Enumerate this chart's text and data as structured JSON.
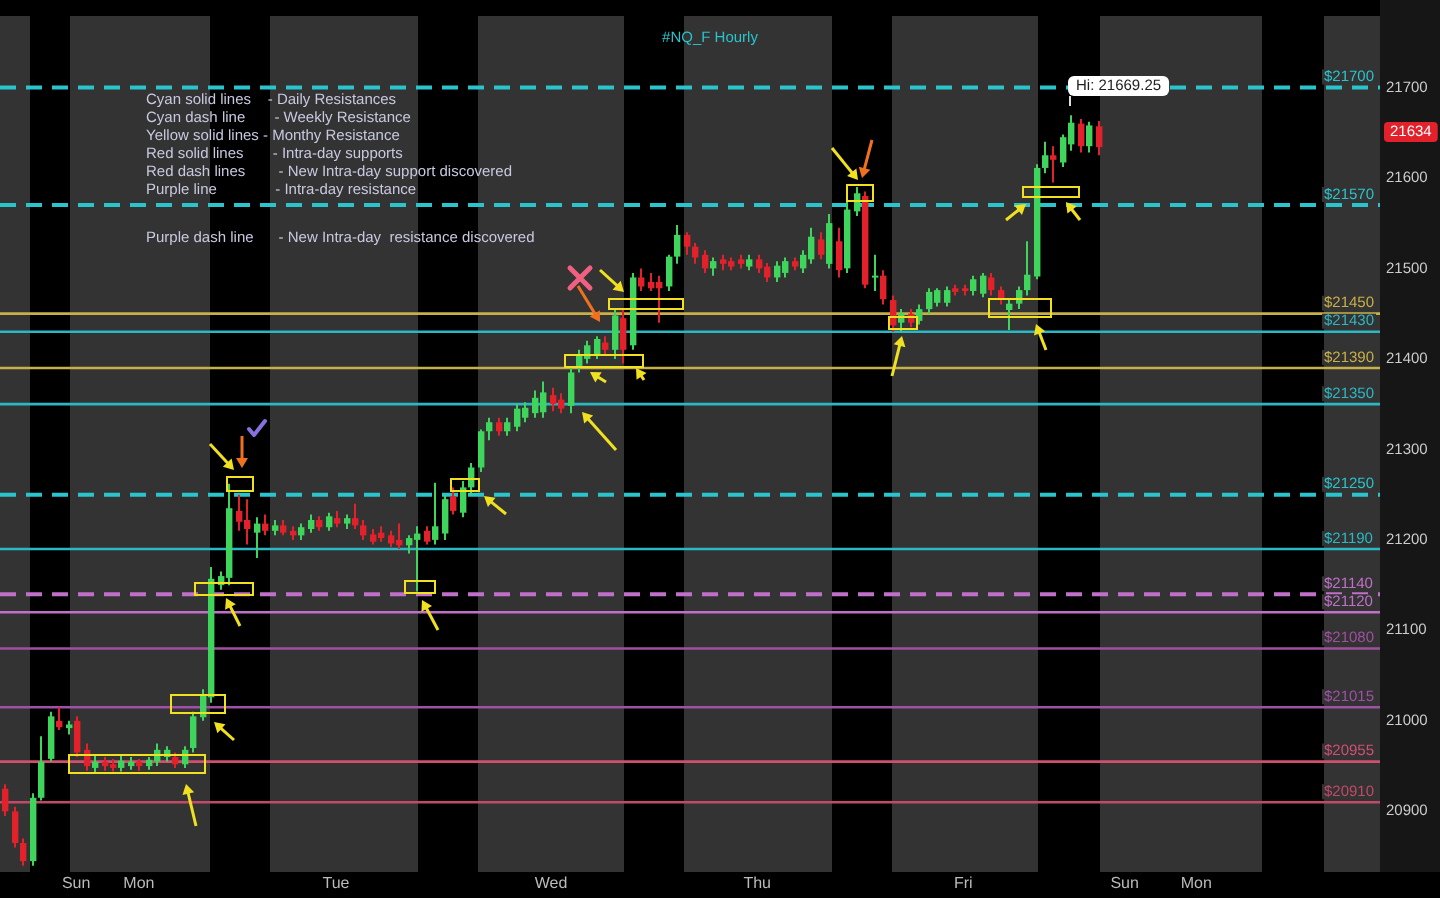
{
  "chart_data": {
    "type": "candlestick",
    "title": "#NQ_F Hourly",
    "categories": [
      null,
      null,
      null,
      null,
      null,
      null,
      null,
      null,
      "Sun",
      null,
      null,
      null,
      null,
      null,
      null,
      "Mon",
      null,
      null,
      null,
      null,
      null,
      null,
      null,
      null,
      null,
      null,
      null,
      null,
      null,
      null,
      null,
      null,
      null,
      null,
      null,
      null,
      null,
      "Tue",
      null,
      null,
      null,
      null,
      null,
      null,
      null,
      null,
      null,
      null,
      null,
      null,
      null,
      null,
      null,
      null,
      null,
      null,
      null,
      null,
      null,
      null,
      null,
      "Wed",
      null,
      null,
      null,
      null,
      null,
      null,
      null,
      null,
      null,
      null,
      null,
      null,
      null,
      null,
      null,
      null,
      null,
      null,
      null,
      null,
      null,
      null,
      "Thu",
      null,
      null,
      null,
      null,
      null,
      null,
      null,
      null,
      null,
      null,
      null,
      null,
      null,
      null,
      null,
      null,
      null,
      null,
      null,
      null,
      null,
      null,
      "Fri",
      null,
      null,
      null,
      null,
      null,
      null,
      null,
      null,
      null,
      null,
      null,
      null,
      null,
      null,
      null,
      null,
      null,
      "Sun",
      null,
      null,
      null,
      null,
      null,
      null,
      null,
      "Mon",
      null,
      null,
      null,
      null,
      null,
      null,
      null,
      null,
      null,
      null,
      null,
      null,
      null,
      null,
      null,
      null,
      null,
      null,
      null,
      null
    ],
    "ohlc": [
      [
        20925,
        20930,
        20895,
        20900
      ],
      [
        20900,
        20905,
        20860,
        20865
      ],
      [
        20865,
        20870,
        20840,
        20845
      ],
      [
        20845,
        20920,
        20840,
        20915
      ],
      [
        20915,
        20983,
        20912,
        20955
      ],
      [
        20958,
        21010,
        20955,
        21005
      ],
      [
        21000,
        21015,
        20990,
        20993
      ],
      [
        20992,
        21000,
        20985,
        20996
      ],
      [
        21000,
        21005,
        20960,
        20965
      ],
      [
        20968,
        20975,
        20945,
        20950
      ],
      [
        20948,
        20962,
        20942,
        20955
      ],
      [
        20955,
        20960,
        20945,
        20950
      ],
      [
        20952,
        20958,
        20944,
        20948
      ],
      [
        20948,
        20962,
        20944,
        20956
      ],
      [
        20950,
        20960,
        20946,
        20955
      ],
      [
        20955,
        20958,
        20945,
        20950
      ],
      [
        20950,
        20960,
        20946,
        20957
      ],
      [
        20955,
        20975,
        20950,
        20968
      ],
      [
        20960,
        20972,
        20955,
        20968
      ],
      [
        20960,
        20965,
        20948,
        20952
      ],
      [
        20952,
        20972,
        20948,
        20968
      ],
      [
        20970,
        21010,
        20965,
        21005
      ],
      [
        21004,
        21035,
        21000,
        21028
      ],
      [
        21026,
        21170,
        21020,
        21157
      ],
      [
        21150,
        21165,
        21145,
        21160
      ],
      [
        21158,
        21262,
        21150,
        21235
      ],
      [
        21232,
        21250,
        21210,
        21220
      ],
      [
        21222,
        21245,
        21195,
        21212
      ],
      [
        21208,
        21225,
        21180,
        21218
      ],
      [
        21218,
        21228,
        21205,
        21210
      ],
      [
        21210,
        21222,
        21205,
        21216
      ],
      [
        21216,
        21222,
        21205,
        21208
      ],
      [
        21210,
        21215,
        21200,
        21205
      ],
      [
        21205,
        21218,
        21200,
        21214
      ],
      [
        21212,
        21228,
        21208,
        21222
      ],
      [
        21222,
        21226,
        21210,
        21214
      ],
      [
        21214,
        21230,
        21210,
        21226
      ],
      [
        21224,
        21232,
        21214,
        21218
      ],
      [
        21218,
        21228,
        21212,
        21224
      ],
      [
        21224,
        21240,
        21212,
        21216
      ],
      [
        21216,
        21222,
        21200,
        21205
      ],
      [
        21206,
        21212,
        21195,
        21198
      ],
      [
        21208,
        21215,
        21198,
        21202
      ],
      [
        21205,
        21210,
        21192,
        21196
      ],
      [
        21200,
        21218,
        21190,
        21194
      ],
      [
        21194,
        21205,
        21185,
        21202
      ],
      [
        21200,
        21215,
        21143,
        21207
      ],
      [
        21210,
        21215,
        21195,
        21198
      ],
      [
        21200,
        21263,
        21195,
        21215
      ],
      [
        21207,
        21250,
        21200,
        21245
      ],
      [
        21248,
        21258,
        21228,
        21232
      ],
      [
        21230,
        21265,
        21225,
        21258
      ],
      [
        21258,
        21285,
        21250,
        21280
      ],
      [
        21280,
        21322,
        21275,
        21320
      ],
      [
        21320,
        21335,
        21310,
        21330
      ],
      [
        21330,
        21335,
        21315,
        21320
      ],
      [
        21320,
        21335,
        21315,
        21330
      ],
      [
        21325,
        21350,
        21320,
        21345
      ],
      [
        21335,
        21352,
        21330,
        21346
      ],
      [
        21340,
        21365,
        21335,
        21357
      ],
      [
        21341,
        21375,
        21335,
        21363
      ],
      [
        21360,
        21368,
        21342,
        21350
      ],
      [
        21355,
        21362,
        21340,
        21345
      ],
      [
        21348,
        21390,
        21340,
        21385
      ],
      [
        21390,
        21410,
        21385,
        21405
      ],
      [
        21400,
        21420,
        21395,
        21415
      ],
      [
        21405,
        21425,
        21400,
        21422
      ],
      [
        21418,
        21425,
        21405,
        21410
      ],
      [
        21410,
        21455,
        21400,
        21448
      ],
      [
        21445,
        21455,
        21395,
        21410
      ],
      [
        21415,
        21495,
        21410,
        21490
      ],
      [
        21490,
        21500,
        21475,
        21480
      ],
      [
        21485,
        21495,
        21475,
        21478
      ],
      [
        21485,
        21492,
        21440,
        21478
      ],
      [
        21480,
        21515,
        21475,
        21513
      ],
      [
        21513,
        21548,
        21505,
        21537
      ],
      [
        21537,
        21540,
        21515,
        21524
      ],
      [
        21524,
        21528,
        21505,
        21512
      ],
      [
        21515,
        21520,
        21495,
        21500
      ],
      [
        21500,
        21512,
        21492,
        21508
      ],
      [
        21510,
        21515,
        21498,
        21505
      ],
      [
        21508,
        21512,
        21498,
        21502
      ],
      [
        21510,
        21515,
        21500,
        21505
      ],
      [
        21502,
        21515,
        21498,
        21510
      ],
      [
        21510,
        21515,
        21495,
        21500
      ],
      [
        21502,
        21506,
        21485,
        21490
      ],
      [
        21490,
        21508,
        21485,
        21503
      ],
      [
        21495,
        21512,
        21490,
        21508
      ],
      [
        21508,
        21512,
        21498,
        21502
      ],
      [
        21500,
        21520,
        21495,
        21515
      ],
      [
        21510,
        21545,
        21505,
        21535
      ],
      [
        21532,
        21540,
        21510,
        21515
      ],
      [
        21505,
        21560,
        21500,
        21550
      ],
      [
        21530,
        21545,
        21490,
        21498
      ],
      [
        21500,
        21575,
        21495,
        21565
      ],
      [
        21563,
        21590,
        21558,
        21583
      ],
      [
        21580,
        21585,
        21478,
        21482
      ],
      [
        21490,
        21515,
        21475,
        21492
      ],
      [
        21492,
        21498,
        21460,
        21466
      ],
      [
        21465,
        21470,
        21430,
        21437
      ],
      [
        21440,
        21455,
        21430,
        21450
      ],
      [
        21450,
        21455,
        21435,
        21440
      ],
      [
        21442,
        21460,
        21438,
        21455
      ],
      [
        21455,
        21478,
        21450,
        21474
      ],
      [
        21462,
        21478,
        21458,
        21476
      ],
      [
        21462,
        21480,
        21458,
        21476
      ],
      [
        21478,
        21482,
        21470,
        21474
      ],
      [
        21478,
        21482,
        21470,
        21475
      ],
      [
        21475,
        21492,
        21470,
        21488
      ],
      [
        21472,
        21495,
        21468,
        21492
      ],
      [
        21490,
        21495,
        21470,
        21476
      ],
      [
        21476,
        21480,
        21460,
        21465
      ],
      [
        21454,
        21466,
        21432,
        21461
      ],
      [
        21461,
        21480,
        21455,
        21476
      ],
      [
        21476,
        21530,
        21470,
        21493
      ],
      [
        21491,
        21615,
        21488,
        21611
      ],
      [
        21611,
        21640,
        21605,
        21625
      ],
      [
        21625,
        21635,
        21595,
        21620
      ],
      [
        21617,
        21648,
        21612,
        21645
      ],
      [
        21637,
        21669.25,
        21630,
        21661
      ],
      [
        21660,
        21665,
        21628,
        21635
      ],
      [
        21635,
        21662,
        21628,
        21658
      ],
      [
        21657,
        21663,
        21625,
        21634
      ],
      null,
      null,
      null,
      null,
      null,
      null,
      null,
      null,
      null,
      null,
      null,
      null,
      null,
      null,
      null,
      null,
      null,
      null,
      null,
      null,
      null,
      null,
      null,
      null,
      null,
      null,
      null,
      null,
      null,
      null,
      null
    ],
    "ylim": [
      20833,
      21780
    ],
    "yticks": [
      20900,
      21000,
      21100,
      21200,
      21300,
      21400,
      21500,
      21600,
      21700
    ],
    "ref_lines": [
      {
        "axis": "y",
        "value": 21700,
        "label": "$21700",
        "color": "#2ac4cc",
        "line_style": "dashed"
      },
      {
        "axis": "y",
        "value": 21570,
        "label": "$21570",
        "color": "#2ac4cc",
        "line_style": "dashed"
      },
      {
        "axis": "y",
        "value": 21450,
        "label": "$21450",
        "color": "#c8b048",
        "line_style": "solid"
      },
      {
        "axis": "y",
        "value": 21430,
        "label": "$21430",
        "color": "#2ab8c4",
        "line_style": "solid"
      },
      {
        "axis": "y",
        "value": 21390,
        "label": "$21390",
        "color": "#c8b048",
        "line_style": "solid"
      },
      {
        "axis": "y",
        "value": 21350,
        "label": "$21350",
        "color": "#2ab8c4",
        "line_style": "solid"
      },
      {
        "axis": "y",
        "value": 21250,
        "label": "$21250",
        "color": "#2ac4cc",
        "line_style": "dashed"
      },
      {
        "axis": "y",
        "value": 21190,
        "label": "$21190",
        "color": "#2ab8c4",
        "line_style": "solid"
      },
      {
        "axis": "y",
        "value": 21140,
        "label": "$21140",
        "color": "#c070c8",
        "line_style": "dashed"
      },
      {
        "axis": "y",
        "value": 21120,
        "label": "$21120",
        "color": "#c070c8",
        "line_style": "solid"
      },
      {
        "axis": "y",
        "value": 21080,
        "label": "$21080",
        "color": "#a050a0",
        "line_style": "solid"
      },
      {
        "axis": "y",
        "value": 21015,
        "label": "$21015",
        "color": "#a050a8",
        "line_style": "solid"
      },
      {
        "axis": "y",
        "value": 20955,
        "label": "$20955",
        "color": "#d05070",
        "line_style": "solid"
      },
      {
        "axis": "y",
        "value": 20910,
        "label": "$20910",
        "color": "#c04a68",
        "line_style": "solid"
      }
    ],
    "annotations": [
      "Cyan solid lines    - Daily Resistances",
      "Cyan dash line       - Weekly Resistance",
      "Yellow solid lines - Monthy Resistance",
      "Red solid lines       - Intra-day supports",
      "Red dash lines        - New Intra-day support discovered",
      "Purple line              - Intra-day resistance",
      "Purple dash line      - New Intra-day  resistance discovered",
      "Hi: 21669.25",
      "21634"
    ]
  }
}
